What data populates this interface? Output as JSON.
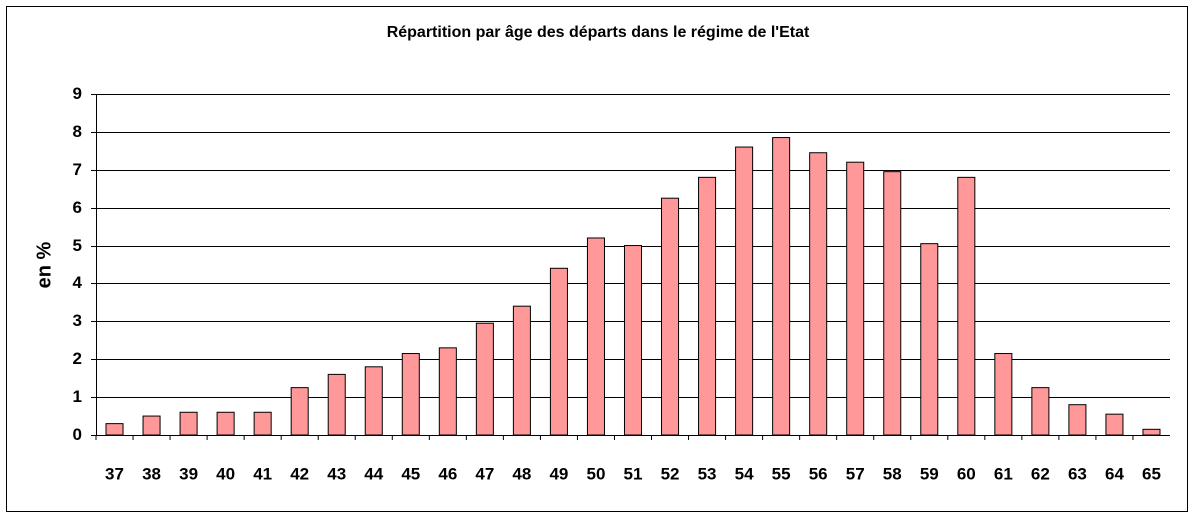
{
  "chart_data": {
    "type": "bar",
    "title": "Répartition par âge des départs dans le régime de l'Etat",
    "y_label": "en %",
    "categories": [
      "37",
      "38",
      "39",
      "40",
      "41",
      "42",
      "43",
      "44",
      "45",
      "46",
      "47",
      "48",
      "49",
      "50",
      "51",
      "52",
      "53",
      "54",
      "55",
      "56",
      "57",
      "58",
      "59",
      "60",
      "61",
      "62",
      "63",
      "64",
      "65"
    ],
    "values": [
      0.3,
      0.5,
      0.6,
      0.6,
      0.6,
      1.25,
      1.6,
      1.8,
      2.15,
      2.3,
      2.95,
      3.4,
      4.4,
      5.2,
      5.0,
      6.25,
      6.8,
      7.6,
      7.85,
      7.45,
      7.2,
      6.95,
      5.05,
      6.8,
      2.15,
      1.25,
      0.8,
      0.55,
      0.15
    ],
    "color": "#ff9999",
    "ylim": [
      0,
      9
    ],
    "yticks": [
      0,
      1,
      2,
      3,
      4,
      5,
      6,
      7,
      8,
      9
    ],
    "grid": true
  }
}
